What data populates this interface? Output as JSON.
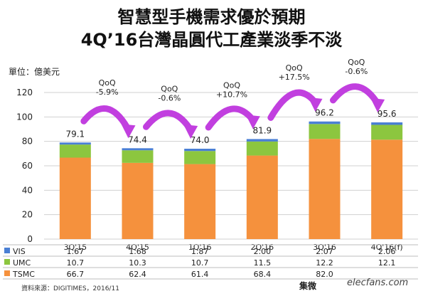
{
  "titles": {
    "line1": "智慧型手機需求優於預期",
    "line2": "4Q’16台灣晶圓代工產業淡季不淡",
    "unit": "單位：億美元"
  },
  "footer": {
    "source": "資料來源：DIGITIMES，2016/11",
    "logo": "集微",
    "watermark": "elecfans.com"
  },
  "colors": {
    "tsmc": "#f5913d",
    "umc": "#8cc63f",
    "vis": "#4a7fd4",
    "arrow": "#c13fdf",
    "grid": "#d0d0d0"
  },
  "chart_data": {
    "type": "bar",
    "stacked": true,
    "categories": [
      "3Q'15",
      "4Q'15",
      "1Q'16",
      "2Q'16",
      "3Q'16",
      "4Q'16(f)"
    ],
    "series": [
      {
        "name": "TSMC",
        "values": [
          66.7,
          62.4,
          61.4,
          68.4,
          82.0,
          81.4
        ],
        "value_labels": [
          "66.7",
          "62.4",
          "61.4",
          "68.4",
          "82.0",
          ""
        ]
      },
      {
        "name": "UMC",
        "values": [
          10.7,
          10.3,
          10.7,
          11.5,
          12.2,
          12.1
        ],
        "value_labels": [
          "10.7",
          "10.3",
          "10.7",
          "11.5",
          "12.2",
          "12.1"
        ]
      },
      {
        "name": "VIS",
        "values": [
          1.67,
          1.68,
          1.87,
          2.0,
          2.07,
          2.06
        ],
        "value_labels": [
          "1.67",
          "1.68",
          "1.87",
          "2.00",
          "2.07",
          "2.06"
        ]
      }
    ],
    "totals": [
      "79.1",
      "74.4",
      "74.0",
      "81.9",
      "96.2",
      "95.6"
    ],
    "qoq": [
      {
        "label": "QoQ",
        "value": "-5.9%"
      },
      {
        "label": "QoQ",
        "value": "-0.6%"
      },
      {
        "label": "QoQ",
        "value": "+10.7%"
      },
      {
        "label": "QoQ",
        "value": "+17.5%"
      },
      {
        "label": "QoQ",
        "value": "-0.6%"
      }
    ],
    "ylim": [
      0,
      120
    ],
    "yticks": [
      0,
      20,
      40,
      60,
      80,
      100,
      120
    ],
    "grid": true,
    "legend": "table-below"
  }
}
